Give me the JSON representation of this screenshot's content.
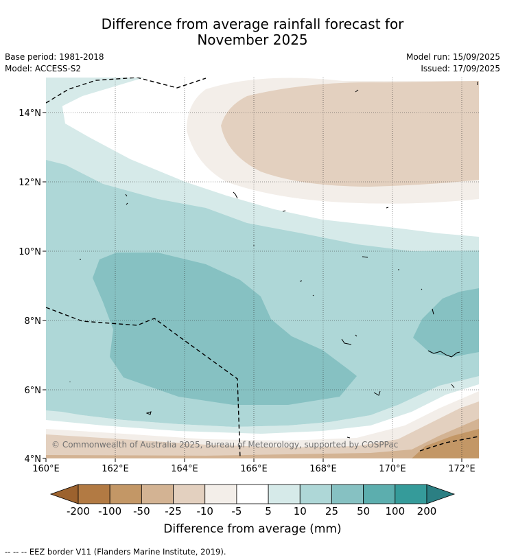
{
  "title_line1": "Difference from average rainfall forecast for",
  "title_line2": "November 2025",
  "base_period": "Base period: 1981-2018",
  "model": "Model: ACCESS-S2",
  "model_run": "Model run: 15/09/2025",
  "issued": "Issued: 17/09/2025",
  "copyright": "© Commonwealth of Australia 2025, Bureau of Meteorology, supported by COSPPac",
  "lat_labels": [
    "14°N",
    "12°N",
    "10°N",
    "8°N",
    "6°N",
    "4°N"
  ],
  "lon_labels": [
    "160°E",
    "162°E",
    "164°E",
    "166°E",
    "168°E",
    "170°E",
    "172°E"
  ],
  "colorbar": {
    "ticks": [
      "-200",
      "-100",
      "-50",
      "-25",
      "-10",
      "-5",
      "5",
      "10",
      "25",
      "50",
      "100",
      "200"
    ],
    "colors": [
      "#9c622e",
      "#b27a43",
      "#c39766",
      "#d3b393",
      "#e3d0bf",
      "#f3eee9",
      "#ffffff",
      "#d6eae9",
      "#aed7d7",
      "#86c1c2",
      "#5caeae",
      "#359b9a",
      "#2b7f83"
    ],
    "title": "Difference from average (mm)"
  },
  "footnote": "--  --  -- EEZ border V11 (Flanders Marine Institute, 2019)."
}
